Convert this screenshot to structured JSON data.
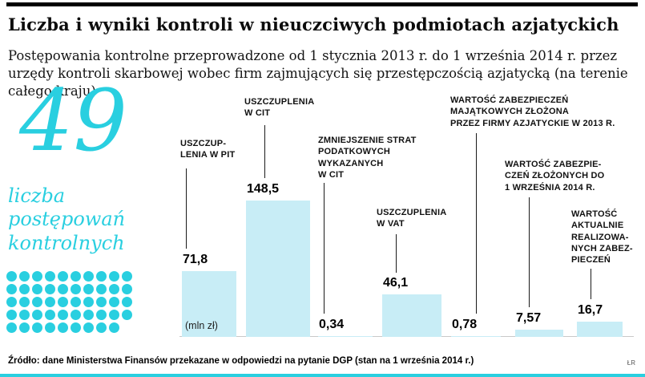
{
  "header": {
    "title": "Liczba i wyniki kontroli w nieuczciwych podmiotach azjatyckich",
    "subtitle": "Postępowania kontrolne przeprowadzone od 1 stycznia 2013 r. do 1 września 2014 r. przez urzędy kontroli skarbowej wobec firm zajmujących się przestępczością azjatycką (na terenie całego kraju)"
  },
  "stat": {
    "value": "49",
    "label": "liczba\npostępowań\nkontrolnych",
    "dots": 49
  },
  "chart_data": {
    "type": "bar",
    "unit": "mln zł",
    "unit_label": "(mln zł)",
    "categories": [
      "Uszczuplenia w PIT",
      "Uszczuplenia w CIT",
      "Zmniejszenie strat podatkowych wykazanych w CIT",
      "Uszczuplenia w VAT",
      "Wartość zabezpieczeń majątkowych złożona przez firmy azjatyckie w 2013 r.",
      "Wartość zabezpieczeń złożonych do 1 września 2014 r.",
      "Wartość aktualnie realizowanych zabezpieczeń"
    ],
    "categories_display": [
      "USZCZUP-\nLENIA W PIT",
      "USZCZUPLENIA\nW CIT",
      "ZMNIEJSZENIE STRAT\nPODATKOWYCH\nWYKAZANYCH\nW CIT",
      "USZCZUPLENIA\nW VAT",
      "WARTOŚĆ ZABEZPIECZEŃ\nMAJĄTKOWYCH ZŁOŻONA\nPRZEZ FIRMY AZJATYCKIE W 2013 R.",
      "WARTOŚĆ ZABEZPIE-\nCZEŃ ZŁOŻONYCH DO\n1 WRZEŚNIA 2014 R.",
      "WARTOŚĆ\nAKTUALNIE\nREALIZOWA-\nNYCH ZABEZ-\nPIECZEŃ"
    ],
    "values": [
      71.8,
      148.5,
      0.34,
      46.1,
      0.78,
      7.57,
      16.7
    ],
    "value_labels": [
      "71,8",
      "148,5",
      "0,34",
      "46,1",
      "0,78",
      "7,57",
      "16,7"
    ],
    "ylim": [
      0,
      160
    ],
    "grid": false,
    "legend": false
  },
  "footer": {
    "source": "Źródło: dane Ministerstwa Finansów przekazane w odpowiedzi na pytanie DGP (stan na 1 września 2014 r.)",
    "credit": "ŁR"
  },
  "colors": {
    "accent": "#29cfe0",
    "bar_fill": "#c8edf6",
    "text": "#0d0d0d"
  }
}
